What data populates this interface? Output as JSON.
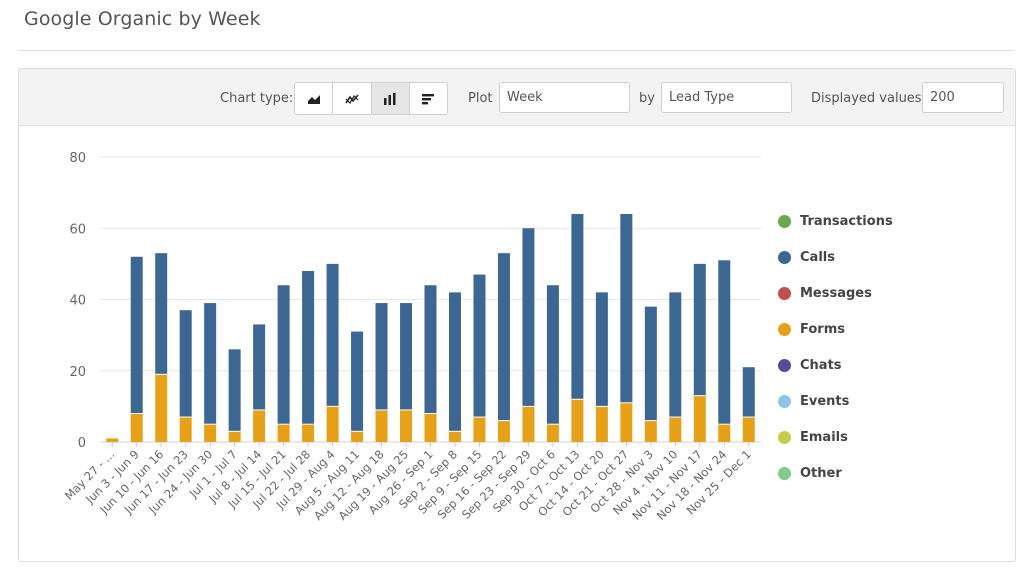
{
  "page": {
    "title": "Google Organic by Week"
  },
  "toolbar": {
    "chart_type_label": "Chart type:",
    "chart_types": [
      {
        "name": "area",
        "icon": "area-chart-icon",
        "active": false
      },
      {
        "name": "line",
        "icon": "line-chart-icon",
        "active": false
      },
      {
        "name": "column",
        "icon": "column-chart-icon",
        "active": true
      },
      {
        "name": "bar",
        "icon": "bar-chart-icon",
        "active": false
      }
    ],
    "plot_label": "Plot",
    "plot_value": "Week",
    "by_label": "by",
    "by_value": "Lead Type",
    "displayed_values_label": "Displayed values:",
    "displayed_values_value": "200"
  },
  "legend": [
    {
      "label": "Transactions",
      "color": "#6aa84f"
    },
    {
      "label": "Calls",
      "color": "#3d6793"
    },
    {
      "label": "Messages",
      "color": "#c0504d"
    },
    {
      "label": "Forms",
      "color": "#e6a118"
    },
    {
      "label": "Chats",
      "color": "#5b4a9b"
    },
    {
      "label": "Events",
      "color": "#8ec4e6"
    },
    {
      "label": "Emails",
      "color": "#c6cc4a"
    },
    {
      "label": "Other",
      "color": "#7fcc88"
    }
  ],
  "chart_data": {
    "type": "bar",
    "stacked": true,
    "title": "",
    "xlabel": "",
    "ylabel": "",
    "ylim": [
      0,
      80
    ],
    "yticks": [
      0,
      20,
      40,
      60,
      80
    ],
    "grid": true,
    "legend_position": "right",
    "categories": [
      "May 27 - ...",
      "Jun 3 - Jun 9",
      "Jun 10 - Jun 16",
      "Jun 17 - Jun 23",
      "Jun 24 - Jun 30",
      "Jul 1 - Jul 7",
      "Jul 8 - Jul 14",
      "Jul 15 - Jul 21",
      "Jul 22 - Jul 28",
      "Jul 29 - Aug 4",
      "Aug 5 - Aug 11",
      "Aug 12 - Aug 18",
      "Aug 19 - Aug 25",
      "Aug 26 - Sep 1",
      "Sep 2 - Sep 8",
      "Sep 9 - Sep 15",
      "Sep 16 - Sep 22",
      "Sep 23 - Sep 29",
      "Sep 30 - Oct 6",
      "Oct 7 - Oct 13",
      "Oct 14 - Oct 20",
      "Oct 21 - Oct 27",
      "Oct 28 - Nov 3",
      "Nov 4 - Nov 10",
      "Nov 11 - Nov 17",
      "Nov 18 - Nov 24",
      "Nov 25 - Dec 1"
    ],
    "series": [
      {
        "name": "Forms",
        "color": "#e6a118",
        "values": [
          1,
          8,
          19,
          7,
          5,
          3,
          9,
          5,
          5,
          10,
          3,
          9,
          9,
          8,
          3,
          7,
          6,
          10,
          5,
          12,
          10,
          11,
          6,
          7,
          13,
          5,
          7
        ]
      },
      {
        "name": "Calls",
        "color": "#3d6793",
        "values": [
          0,
          44,
          34,
          30,
          34,
          23,
          24,
          39,
          43,
          40,
          28,
          30,
          30,
          36,
          39,
          40,
          47,
          50,
          39,
          52,
          32,
          53,
          32,
          35,
          37,
          46,
          14
        ]
      }
    ]
  }
}
